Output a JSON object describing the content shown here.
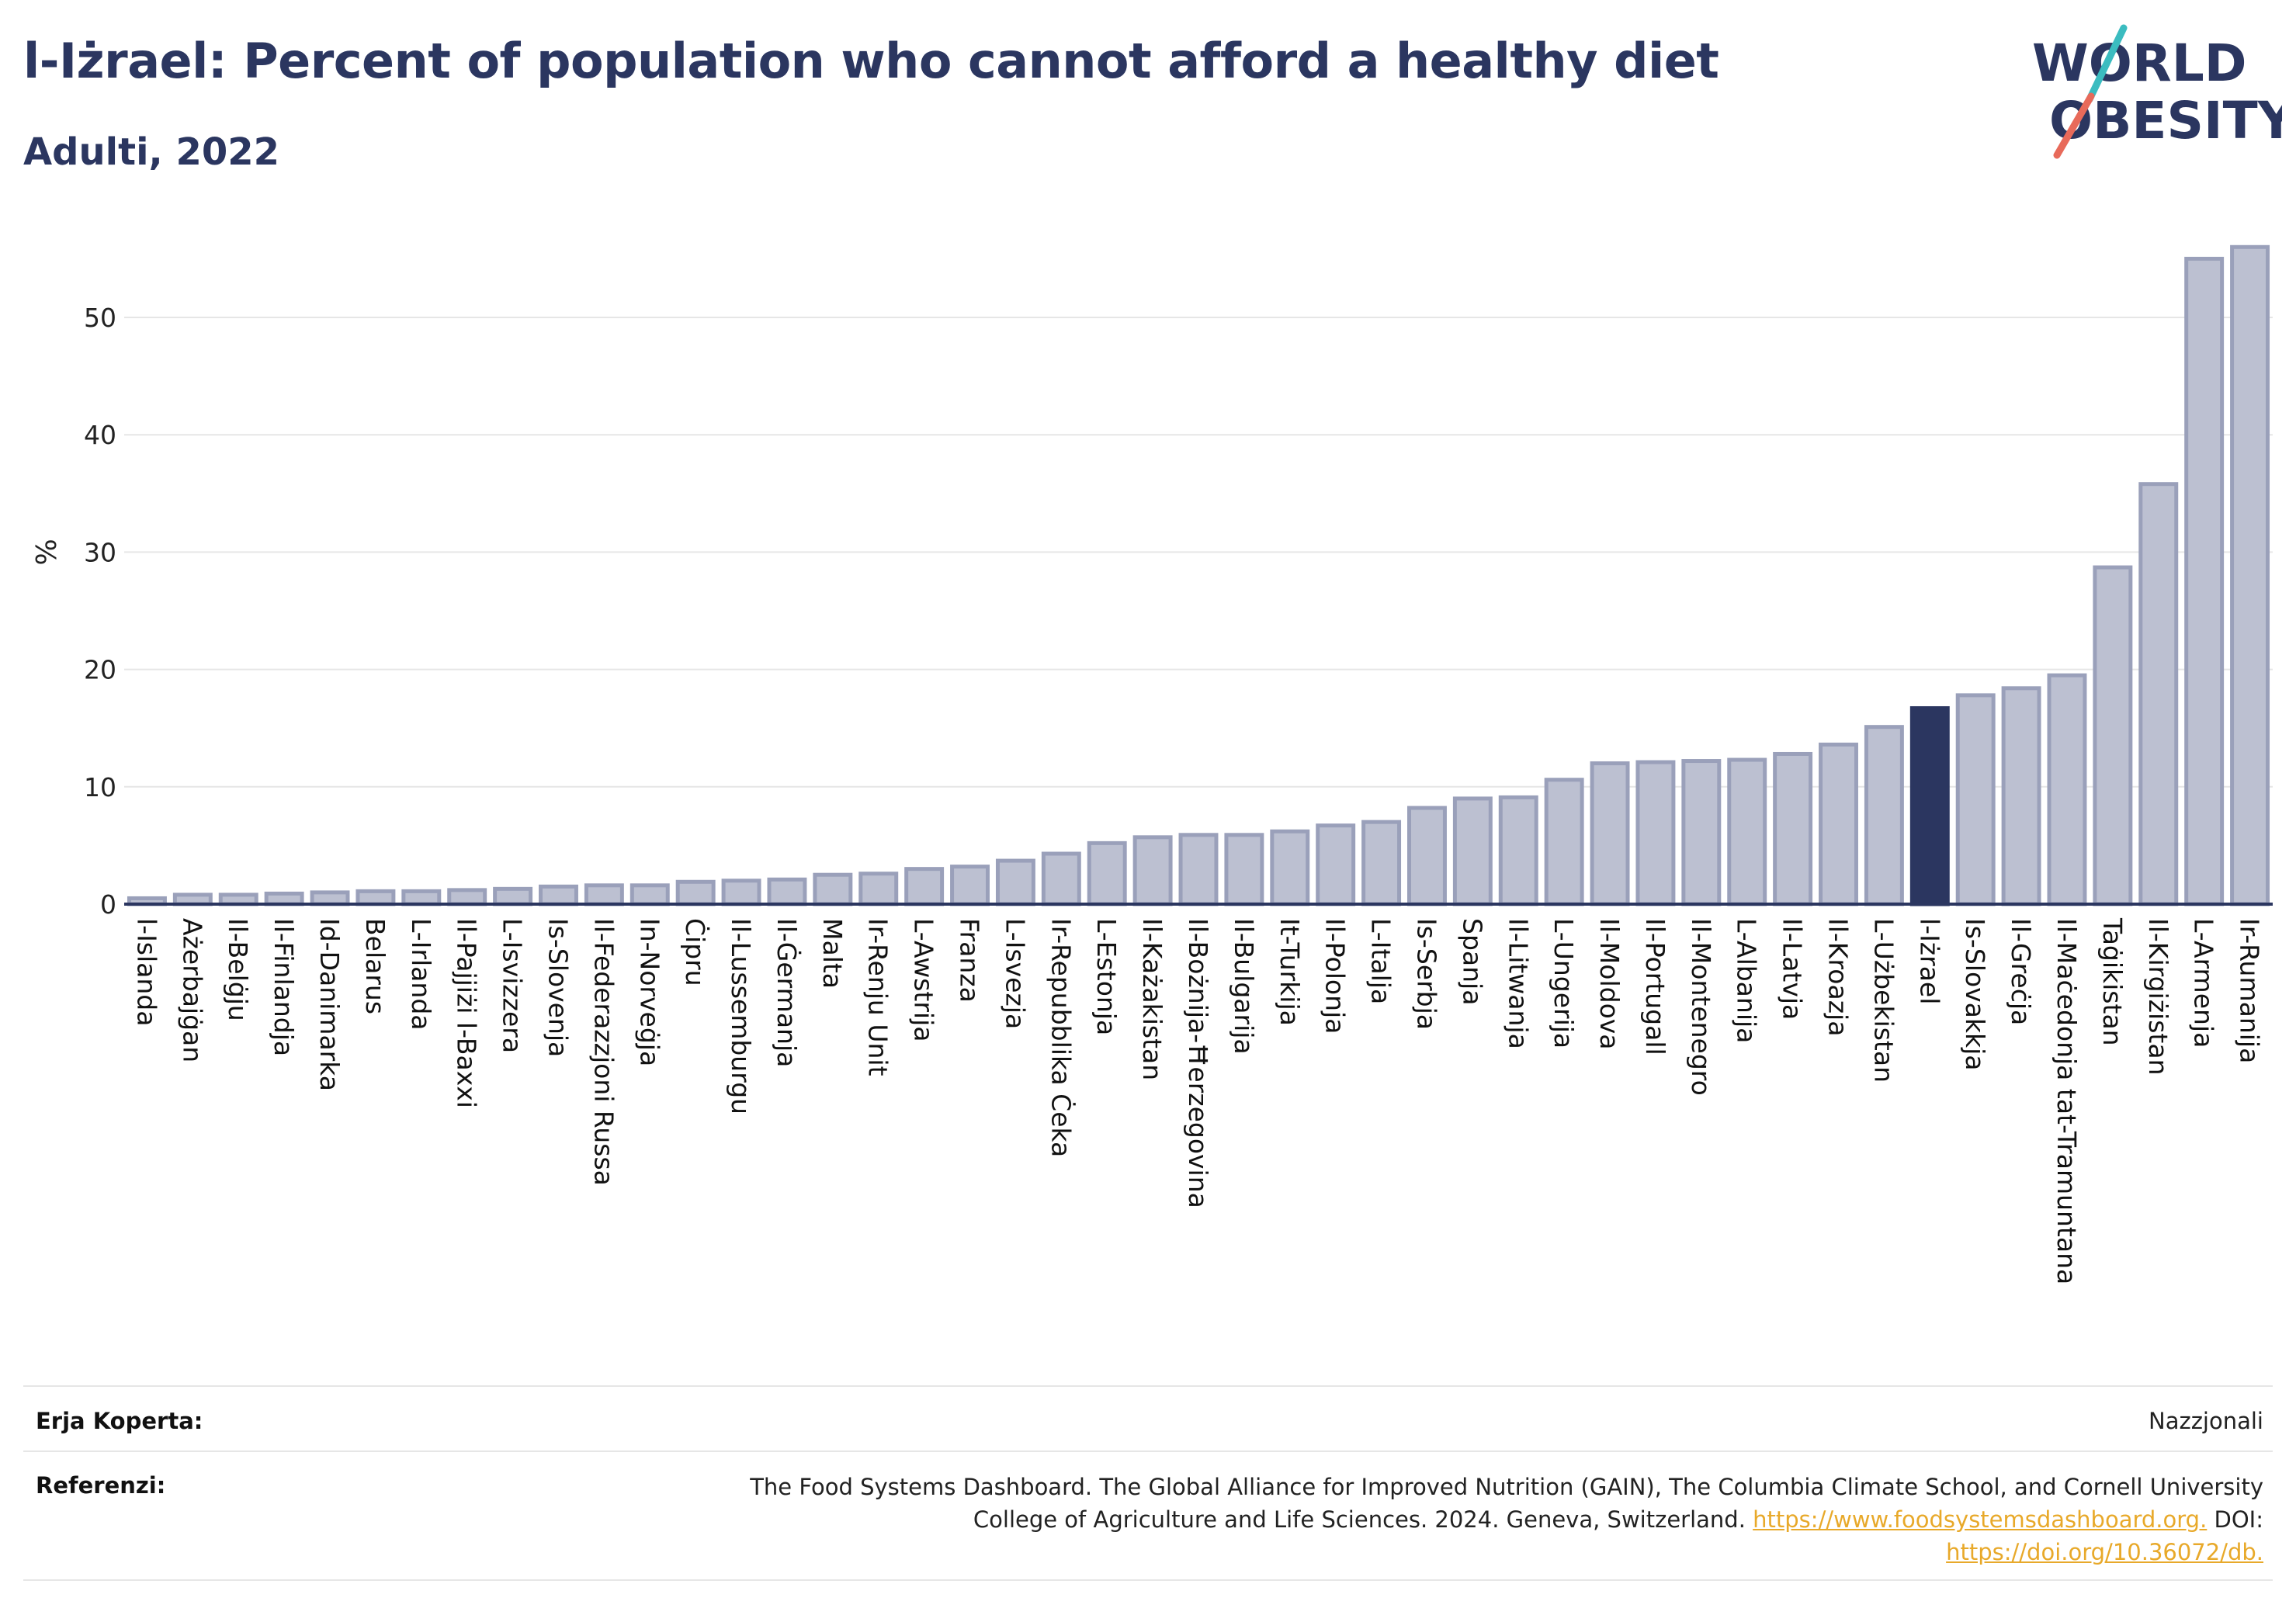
{
  "header": {
    "title": "l-Iżrael: Percent of population who cannot afford a healthy diet",
    "subtitle": "Adulti, 2022"
  },
  "logo": {
    "line1": "WORLD",
    "line2": "OBESITY",
    "colors": {
      "text": "#2b3660",
      "slash_top": "#3bbcc0",
      "slash_bottom": "#e86a5a"
    }
  },
  "colors": {
    "bar": "#bcc0d1",
    "bar_stroke": "#9aa0ba",
    "highlight": "#2b3660",
    "grid": "#e6e6e6",
    "axis": "#2b3660"
  },
  "chart_data": {
    "type": "bar",
    "ylabel": "%",
    "ylim": [
      0,
      58
    ],
    "yticks": [
      0,
      10,
      20,
      30,
      40,
      50
    ],
    "grid": true,
    "highlight_category": "l-Iżrael",
    "categories": [
      "l-Islanda",
      "Ażerbajġan",
      "Il-Belġju",
      "Il-Finlandja",
      "Id-Danimarka",
      "Belarus",
      "L-Irlanda",
      "Il-Pajjiżi l-Baxxi",
      "L-Isvizzera",
      "Is-Slovenja",
      "Il-Federazzjoni Russa",
      "In-Norveġja",
      "Ċipru",
      "Il-Lussemburgu",
      "Il-Ġermanja",
      "Malta",
      "Ir-Renju Unit",
      "L-Awstrija",
      "Franza",
      "L-Isvezja",
      "Ir-Repubblika Ċeka",
      "L-Estonja",
      "Il-Każakistan",
      "Il-Bożnija-Ħerzegovina",
      "Il-Bulgarija",
      "It-Turkija",
      "Il-Polonja",
      "L-Italja",
      "Is-Serbja",
      "Spanja",
      "Il-Litwanja",
      "L-Ungerija",
      "Il-Moldova",
      "Il-Portugall",
      "Il-Montenegro",
      "L-Albanija",
      "Il-Latvja",
      "Il-Kroazja",
      "L-Użbekistan",
      "l-Iżrael",
      "Is-Slovakkja",
      "Il-Greċja",
      "Il-Maċedonja tat-Tramuntana",
      "Taġikistan",
      "Il-Kirgiżistan",
      "L-Armenja",
      "Ir-Rumanija"
    ],
    "values": [
      0.5,
      0.8,
      0.8,
      0.9,
      1.0,
      1.1,
      1.1,
      1.2,
      1.3,
      1.5,
      1.6,
      1.6,
      1.9,
      2.0,
      2.1,
      2.5,
      2.6,
      3.0,
      3.2,
      3.7,
      4.3,
      5.2,
      5.7,
      5.9,
      5.9,
      6.2,
      6.7,
      7.0,
      8.2,
      9.0,
      9.1,
      10.6,
      12.0,
      12.1,
      12.2,
      12.3,
      12.8,
      13.6,
      15.1,
      16.7,
      17.8,
      18.4,
      19.5,
      28.7,
      35.8,
      55.0,
      56.0
    ]
  },
  "footer": {
    "coverage_label": "Erja Koperta:",
    "coverage_value": "Nazzjonali",
    "refs_label": "Referenzi:",
    "refs_line1": "The Food Systems Dashboard. The Global Alliance for Improved Nutrition (GAIN), The Columbia Climate School, and Cornell University",
    "refs_line2": "College of Agriculture and Life Sciences. 2024. Geneva, Switzerland.",
    "refs_link1": "https://www.foodsystemsdashboard.org.",
    "refs_doi": "DOI:",
    "refs_link2": "https://doi.org/10.36072/db."
  }
}
